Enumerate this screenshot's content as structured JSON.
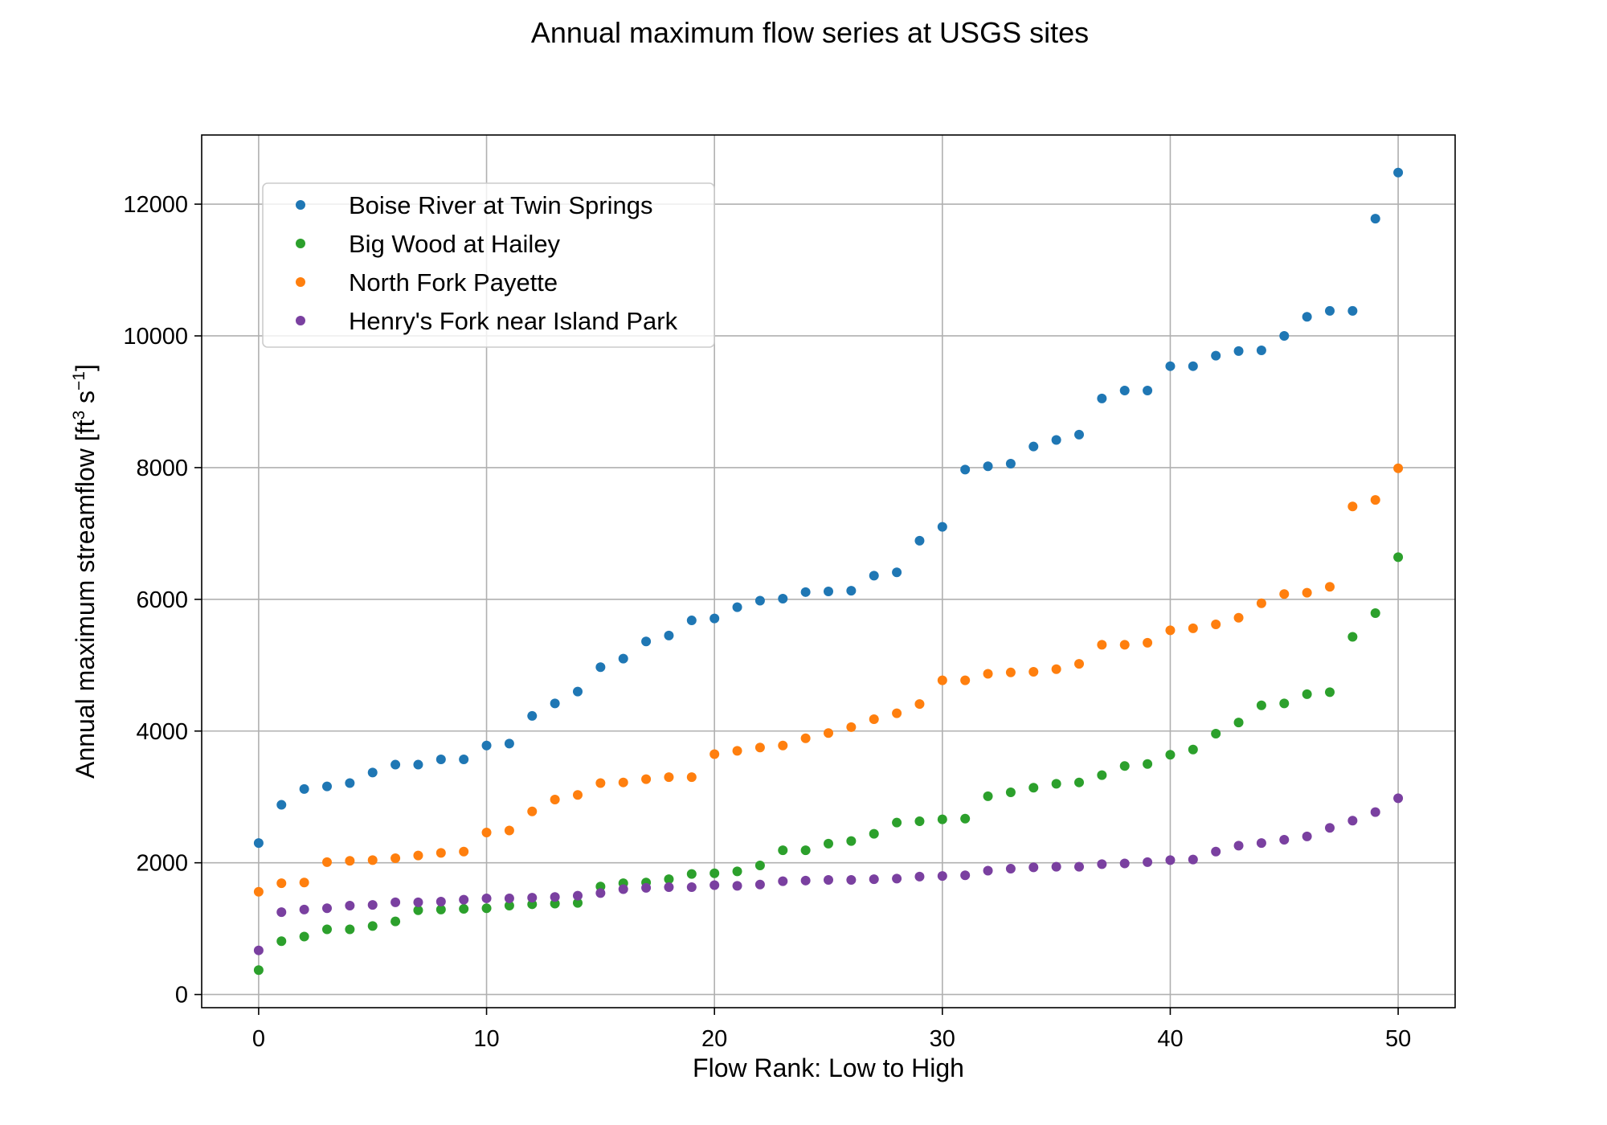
{
  "chart_data": {
    "type": "scatter",
    "title": "Annual maximum flow series at USGS sites",
    "xlabel": "Flow Rank: Low to High",
    "ylabel": {
      "text": "Annual maximum streamflow [ft",
      "sup1": "3",
      "mid": " s",
      "sup2": "−1",
      "end": "]"
    },
    "xlim": [
      -2.5,
      52.5
    ],
    "ylim": [
      -200,
      13050
    ],
    "xticks": [
      0,
      10,
      20,
      30,
      40,
      50
    ],
    "yticks": [
      0,
      2000,
      4000,
      6000,
      8000,
      10000,
      12000
    ],
    "grid": true,
    "legend_position": "upper-left",
    "x": [
      0,
      1,
      2,
      3,
      4,
      5,
      6,
      7,
      8,
      9,
      10,
      11,
      12,
      13,
      14,
      15,
      16,
      17,
      18,
      19,
      20,
      21,
      22,
      23,
      24,
      25,
      26,
      27,
      28,
      29,
      30,
      31,
      32,
      33,
      34,
      35,
      36,
      37,
      38,
      39,
      40,
      41,
      42,
      43,
      44,
      45,
      46,
      47,
      48,
      49,
      50
    ],
    "series": [
      {
        "name": "Boise River at Twin Springs",
        "color": "#1f77b4",
        "values": [
          2300,
          2880,
          3120,
          3160,
          3210,
          3370,
          3490,
          3490,
          3570,
          3570,
          3780,
          3810,
          4230,
          4420,
          4600,
          4970,
          5100,
          5360,
          5450,
          5680,
          5710,
          5880,
          5980,
          6010,
          6110,
          6120,
          6130,
          6360,
          6410,
          6890,
          7100,
          7970,
          8020,
          8060,
          8320,
          8420,
          8500,
          9050,
          9170,
          9170,
          9540,
          9540,
          9700,
          9770,
          9780,
          10000,
          10290,
          10380,
          10380,
          11780,
          12480
        ]
      },
      {
        "name": "Big Wood at Hailey",
        "color": "#2ca02c",
        "values": [
          370,
          810,
          880,
          990,
          990,
          1040,
          1110,
          1280,
          1290,
          1300,
          1310,
          1350,
          1370,
          1380,
          1390,
          1640,
          1690,
          1700,
          1750,
          1830,
          1840,
          1870,
          1960,
          2190,
          2190,
          2290,
          2330,
          2440,
          2610,
          2630,
          2660,
          2670,
          3010,
          3070,
          3140,
          3200,
          3220,
          3330,
          3470,
          3500,
          3640,
          3720,
          3960,
          4130,
          4390,
          4420,
          4560,
          4590,
          5430,
          5790,
          6640
        ]
      },
      {
        "name": "North Fork Payette",
        "color": "#ff7f0e",
        "values": [
          1560,
          1690,
          1700,
          2010,
          2030,
          2040,
          2070,
          2110,
          2150,
          2170,
          2460,
          2490,
          2780,
          2960,
          3030,
          3210,
          3220,
          3270,
          3300,
          3300,
          3650,
          3700,
          3750,
          3780,
          3890,
          3970,
          4060,
          4180,
          4270,
          4410,
          4770,
          4770,
          4870,
          4890,
          4900,
          4940,
          5020,
          5310,
          5310,
          5340,
          5530,
          5560,
          5620,
          5720,
          5940,
          6080,
          6100,
          6190,
          7410,
          7510,
          7990
        ]
      },
      {
        "name": "Henry's Fork near Island Park",
        "color": "#7a40a0",
        "values": [
          670,
          1250,
          1290,
          1310,
          1350,
          1360,
          1400,
          1400,
          1410,
          1440,
          1460,
          1460,
          1470,
          1480,
          1500,
          1540,
          1600,
          1620,
          1630,
          1630,
          1660,
          1650,
          1670,
          1720,
          1730,
          1740,
          1740,
          1750,
          1760,
          1790,
          1800,
          1810,
          1880,
          1910,
          1930,
          1940,
          1940,
          1980,
          1990,
          2010,
          2040,
          2050,
          2170,
          2260,
          2300,
          2350,
          2400,
          2530,
          2640,
          2770,
          2980
        ]
      }
    ]
  }
}
